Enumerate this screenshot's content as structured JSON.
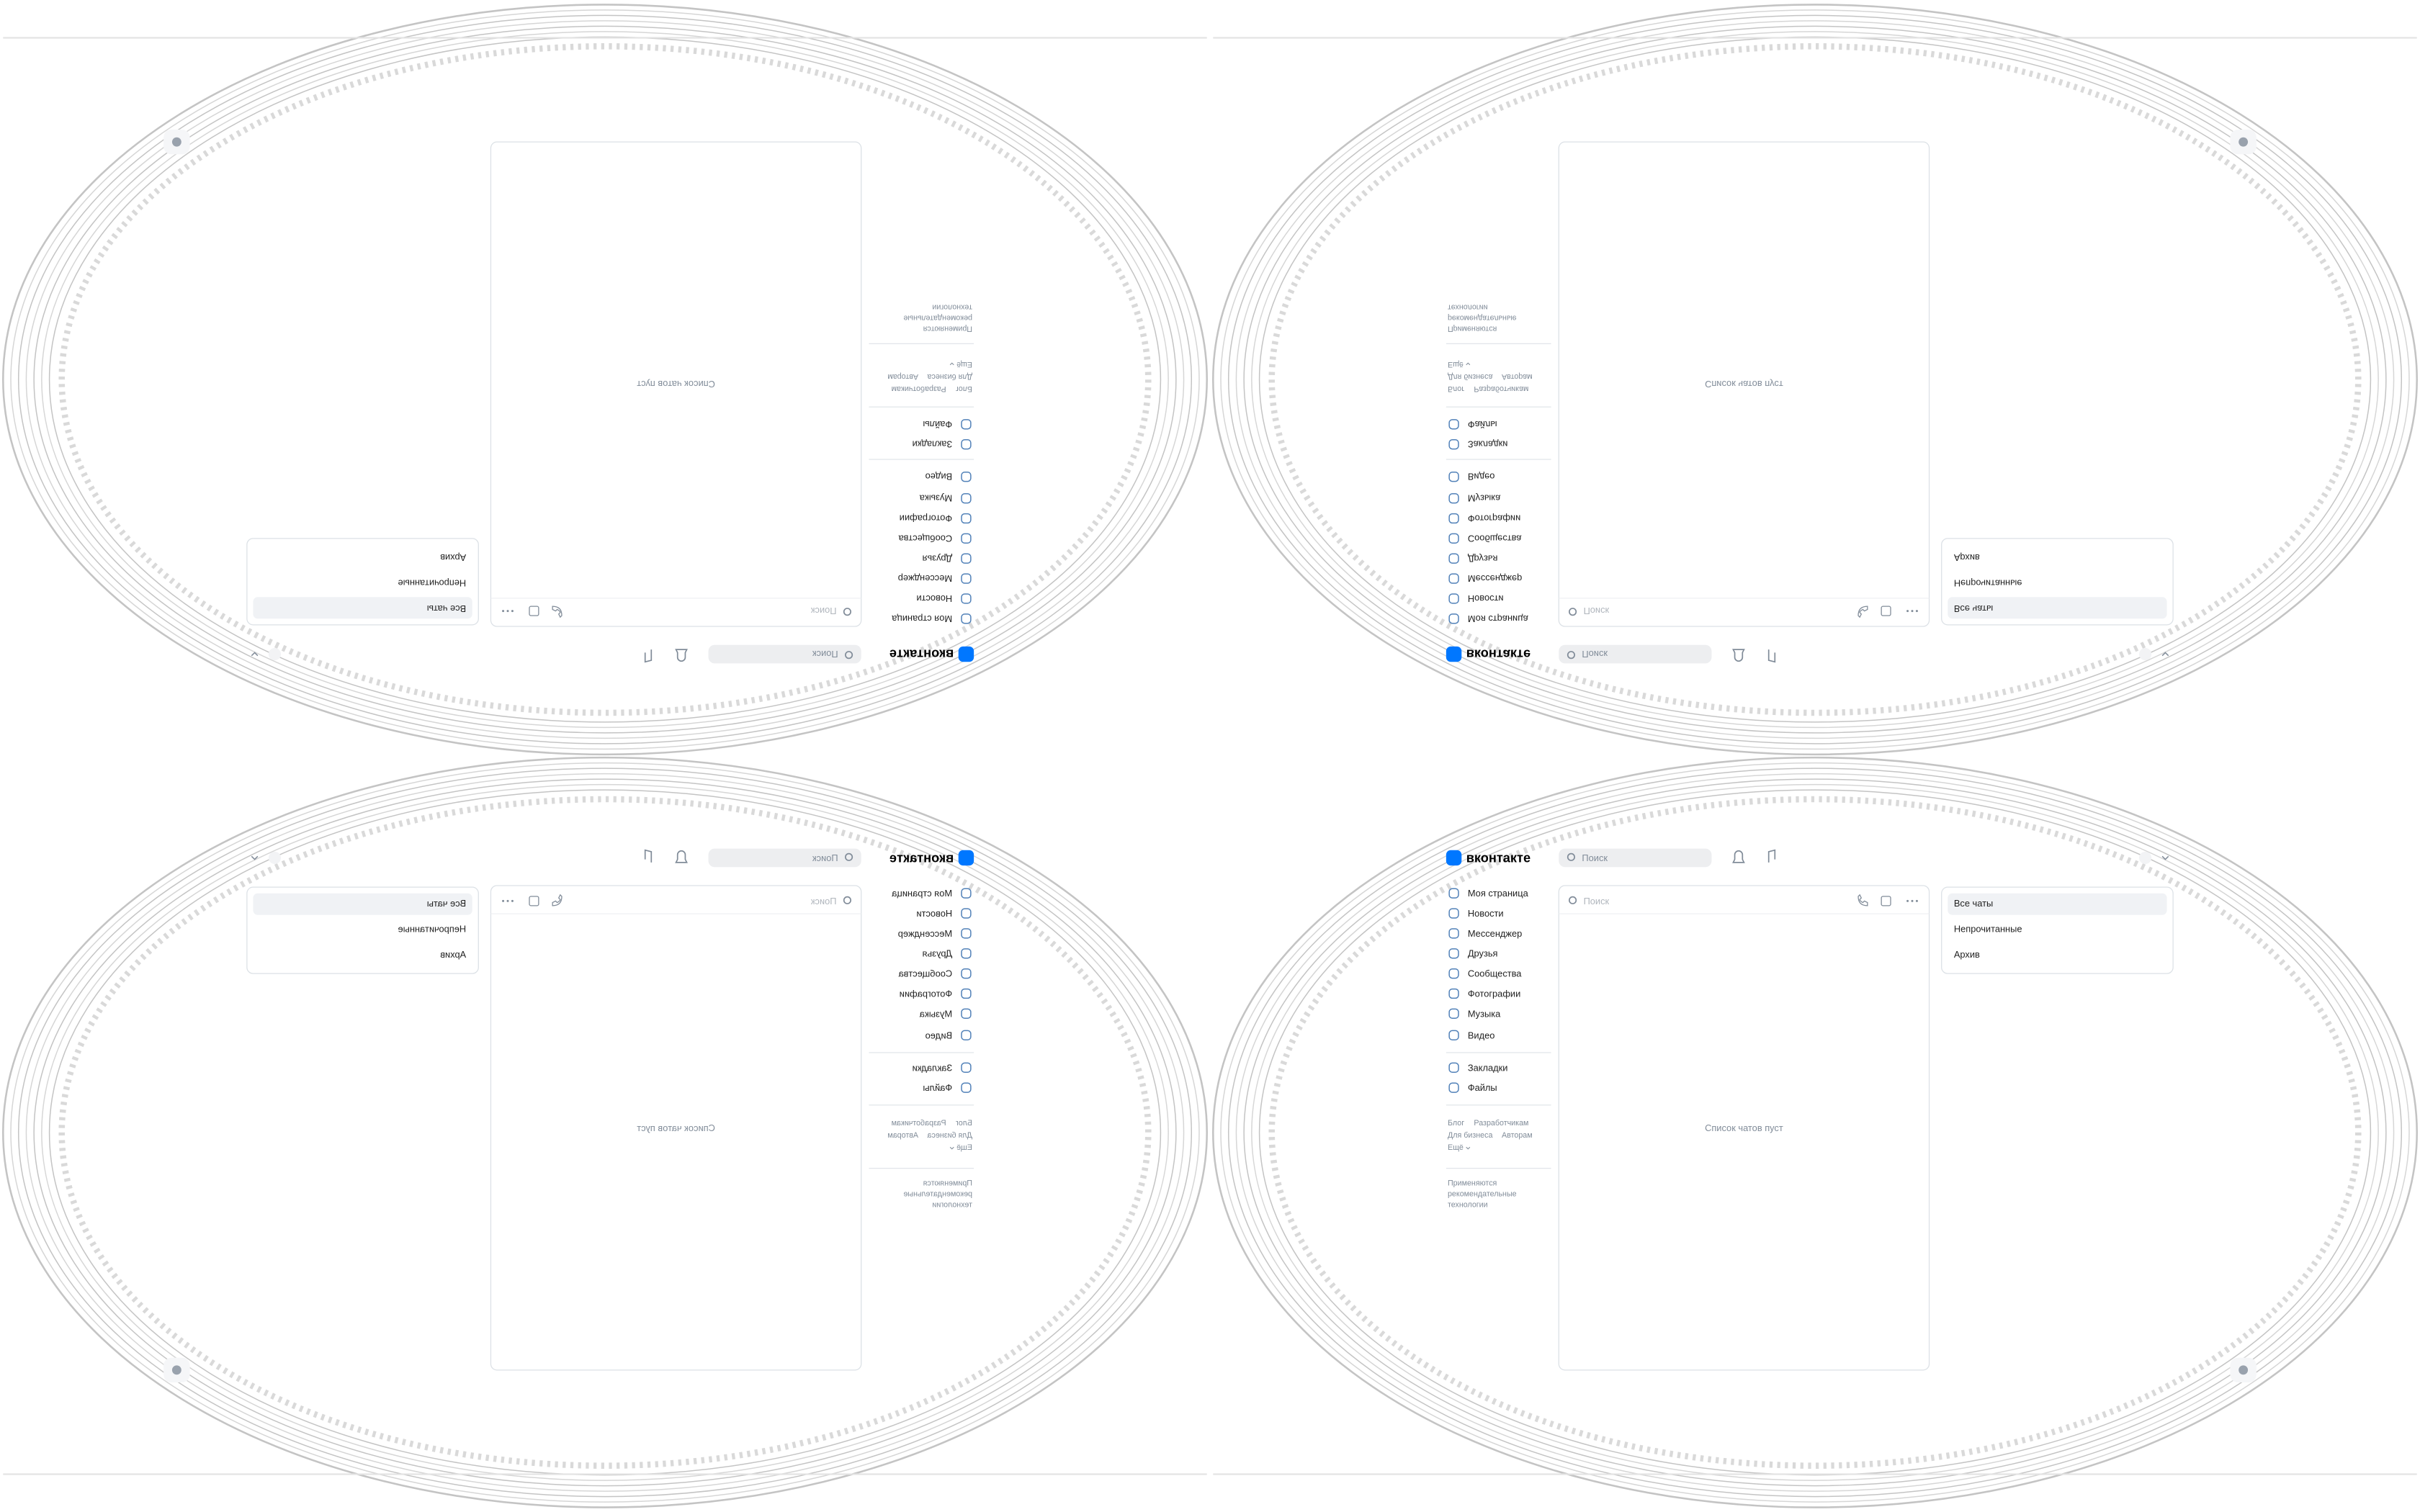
{
  "logo": "вконтакте",
  "search_placeholder": "Поиск",
  "nav": [
    "Моя страница",
    "Новости",
    "Мессенджер",
    "Друзья",
    "Сообщества",
    "Фотографии",
    "Музыка",
    "Видео"
  ],
  "secondary_nav": [
    "Закладки",
    "Файлы"
  ],
  "footer_links": [
    "Блог",
    "Разработчикам",
    "Для бизнеса",
    "Авторам",
    "Ещё"
  ],
  "footer_note": [
    "Применяются",
    "рекомендательные",
    "технологии"
  ],
  "chat_search_placeholder": "Поиск",
  "empty_list": "Список чатов пуст",
  "filters": [
    "Все чаты",
    "Непрочитанные",
    "Архив"
  ]
}
